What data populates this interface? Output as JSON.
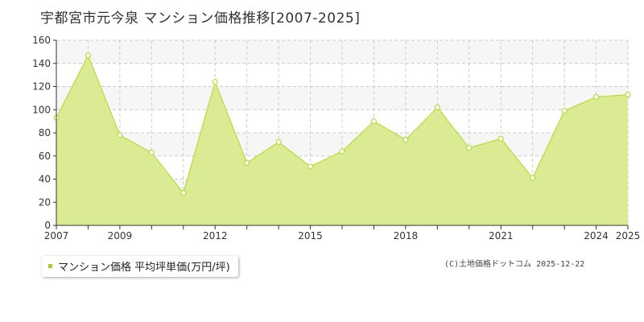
{
  "title": "宇都宮市元今泉 マンション価格推移[2007-2025]",
  "legend_label": "マンション価格 平均坪単価(万円/坪)",
  "copyright": "(C)土地価格ドットコム 2025-12-22",
  "colors": {
    "fill": "#dbeb93",
    "line": "#b5dc3c",
    "marker_fill": "#ffffff",
    "marker_stroke": "#b5dc3c",
    "legend_marker": "#a3d125",
    "band": "#f6f6f6",
    "grid": "#cccccc",
    "axis": "#333333"
  },
  "chart_data": {
    "type": "area",
    "title": "宇都宮市元今泉 マンション価格推移[2007-2025]",
    "xlabel": "",
    "ylabel": "",
    "ylim": [
      0,
      160
    ],
    "xlim": [
      2007,
      2025
    ],
    "y_ticks": [
      0,
      20,
      40,
      60,
      80,
      100,
      120,
      140,
      160
    ],
    "x_tick_labels": [
      "2007",
      "2009",
      "2012",
      "2015",
      "2018",
      "2021",
      "2024",
      "2025"
    ],
    "grid": true,
    "legend_position": "bottom-left",
    "series": [
      {
        "name": "マンション価格 平均坪単価(万円/坪)",
        "x": [
          2007,
          2008,
          2009,
          2010,
          2011,
          2012,
          2013,
          2014,
          2015,
          2016,
          2017,
          2018,
          2019,
          2020,
          2021,
          2022,
          2023,
          2024,
          2025
        ],
        "values": [
          93,
          147,
          78,
          63,
          28,
          124,
          54,
          72,
          51,
          64,
          90,
          74,
          102,
          67,
          75,
          41,
          99,
          111,
          113
        ]
      }
    ]
  }
}
